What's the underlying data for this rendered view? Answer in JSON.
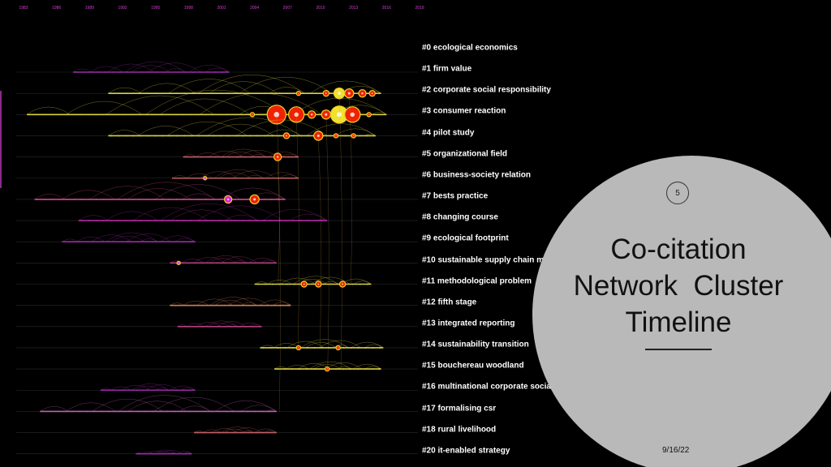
{
  "timeline": {
    "years": [
      "1983",
      "1986",
      "1989",
      "1992",
      "1995",
      "1998",
      "2001",
      "2004",
      "2007",
      "2010",
      "2013",
      "2016",
      "2019"
    ],
    "clusters": [
      {
        "label": "#0 ecological economics",
        "start": 1987.5,
        "end": 2001.7,
        "color": "#9a2aa8",
        "nodes": []
      },
      {
        "label": "#1 firm value",
        "start": 1990.7,
        "end": 2015.5,
        "color": "#d8d040",
        "nodes": [
          {
            "year": 2010.5,
            "size": 3,
            "color": "#ee2200"
          },
          {
            "year": 2011.7,
            "size": 6,
            "color": "#f0e030"
          },
          {
            "year": 2012.6,
            "size": 5,
            "color": "#ee2200"
          },
          {
            "year": 2013.8,
            "size": 4,
            "color": "#ee2200"
          },
          {
            "year": 2014.7,
            "size": 3,
            "color": "#ee2200"
          },
          {
            "year": 2008.0,
            "size": 2,
            "color": "#ee2200"
          }
        ]
      },
      {
        "label": "#2 corporate social responsibility",
        "start": 1983.3,
        "end": 2016.0,
        "color": "#d8d040",
        "nodes": [
          {
            "year": 2003.8,
            "size": 2,
            "color": "#ee2200"
          },
          {
            "year": 2006.0,
            "size": 11,
            "color": "#ee2200"
          },
          {
            "year": 2007.8,
            "size": 9,
            "color": "#ee2200"
          },
          {
            "year": 2009.2,
            "size": 4,
            "color": "#ee2200"
          },
          {
            "year": 2010.5,
            "size": 5,
            "color": "#ee2200"
          },
          {
            "year": 2011.7,
            "size": 10,
            "color": "#f0e030"
          },
          {
            "year": 2012.9,
            "size": 9,
            "color": "#ee2200"
          },
          {
            "year": 2014.4,
            "size": 2,
            "color": "#ee2200"
          }
        ]
      },
      {
        "label": "#3 consumer reaction",
        "start": 1990.7,
        "end": 2015.0,
        "color": "#d8d040",
        "nodes": [
          {
            "year": 2006.9,
            "size": 3,
            "color": "#ee2200"
          },
          {
            "year": 2009.8,
            "size": 5,
            "color": "#ee2200"
          },
          {
            "year": 2011.4,
            "size": 2,
            "color": "#ee2200"
          },
          {
            "year": 2013.0,
            "size": 2,
            "color": "#ee2200"
          }
        ]
      },
      {
        "label": "#4 pilot study",
        "start": 1997.5,
        "end": 2008.0,
        "color": "#c06060",
        "nodes": [
          {
            "year": 2006.1,
            "size": 4,
            "color": "#ee2200"
          }
        ]
      },
      {
        "label": "#5 organizational field",
        "start": 1996.5,
        "end": 2008.0,
        "color": "#c06060",
        "nodes": [
          {
            "year": 1999.5,
            "size": 1.5,
            "color": "#e020e0"
          }
        ]
      },
      {
        "label": "#6 business-society relation",
        "start": 1984.0,
        "end": 2006.8,
        "color": "#d04a8a",
        "nodes": [
          {
            "year": 2001.6,
            "size": 4,
            "color": "#e020e0"
          },
          {
            "year": 2004.0,
            "size": 5,
            "color": "#ee2200"
          }
        ]
      },
      {
        "label": "#7 bests practice",
        "start": 1988.0,
        "end": 2010.6,
        "color": "#b02aa0",
        "nodes": []
      },
      {
        "label": "#8 changing course",
        "start": 1986.5,
        "end": 1998.6,
        "color": "#9a2aa8",
        "nodes": []
      },
      {
        "label": "#9 ecological footprint",
        "start": 1996.3,
        "end": 2006.0,
        "color": "#b04080",
        "nodes": [
          {
            "year": 1997.1,
            "size": 1.5,
            "color": "#e020e0"
          }
        ]
      },
      {
        "label": "#10 sustainable supply chain management",
        "start": 2004.0,
        "end": 2014.6,
        "color": "#d8d040",
        "nodes": [
          {
            "year": 2008.5,
            "size": 3,
            "color": "#ee2200"
          },
          {
            "year": 2009.8,
            "size": 3,
            "color": "#ee2200"
          },
          {
            "year": 2012.0,
            "size": 3,
            "color": "#ee2200"
          }
        ]
      },
      {
        "label": "#11 methodological problem",
        "start": 1996.3,
        "end": 2007.3,
        "color": "#d08050",
        "nodes": []
      },
      {
        "label": "#12 fifth stage",
        "start": 1997.0,
        "end": 2004.6,
        "color": "#b04080",
        "nodes": []
      },
      {
        "label": "#13 integrated reporting",
        "start": 2004.5,
        "end": 2015.7,
        "color": "#d8d040",
        "nodes": [
          {
            "year": 2008.0,
            "size": 2,
            "color": "#ee2200"
          },
          {
            "year": 2011.6,
            "size": 2,
            "color": "#ee2200"
          }
        ]
      },
      {
        "label": "#14 sustainability transition",
        "start": 2005.8,
        "end": 2015.5,
        "color": "#d8d040",
        "nodes": [
          {
            "year": 2010.6,
            "size": 2,
            "color": "#ee2200"
          }
        ]
      },
      {
        "label": "#15 bouchereau woodland",
        "start": 1990.0,
        "end": 1998.6,
        "color": "#9a2aa8",
        "nodes": []
      },
      {
        "label": "#16 multinational corporate social-responsibility",
        "start": 1984.5,
        "end": 2006.0,
        "color": "#c060b0",
        "nodes": []
      },
      {
        "label": "#17 formalising csr",
        "start": 1998.5,
        "end": 2006.0,
        "color": "#c06060",
        "nodes": []
      },
      {
        "label": "#18 rural livelihood",
        "start": 1993.2,
        "end": 1998.3,
        "color": "#9a2aa8",
        "nodes": []
      },
      {
        "label": "#20 it-enabled strategy",
        "start": 1994.0,
        "end": 2001.2,
        "color": "#9a2aa8",
        "nodes": []
      }
    ]
  },
  "slide": {
    "number": "5",
    "title_lines": [
      "Co-citation",
      "Network  Cluster",
      "Timeline"
    ],
    "date": "9/16/22"
  },
  "colors": {
    "background": "#000000",
    "circle": "#b9b9b9",
    "year_label": "#d040d0",
    "cluster_label": "#ffffff"
  }
}
